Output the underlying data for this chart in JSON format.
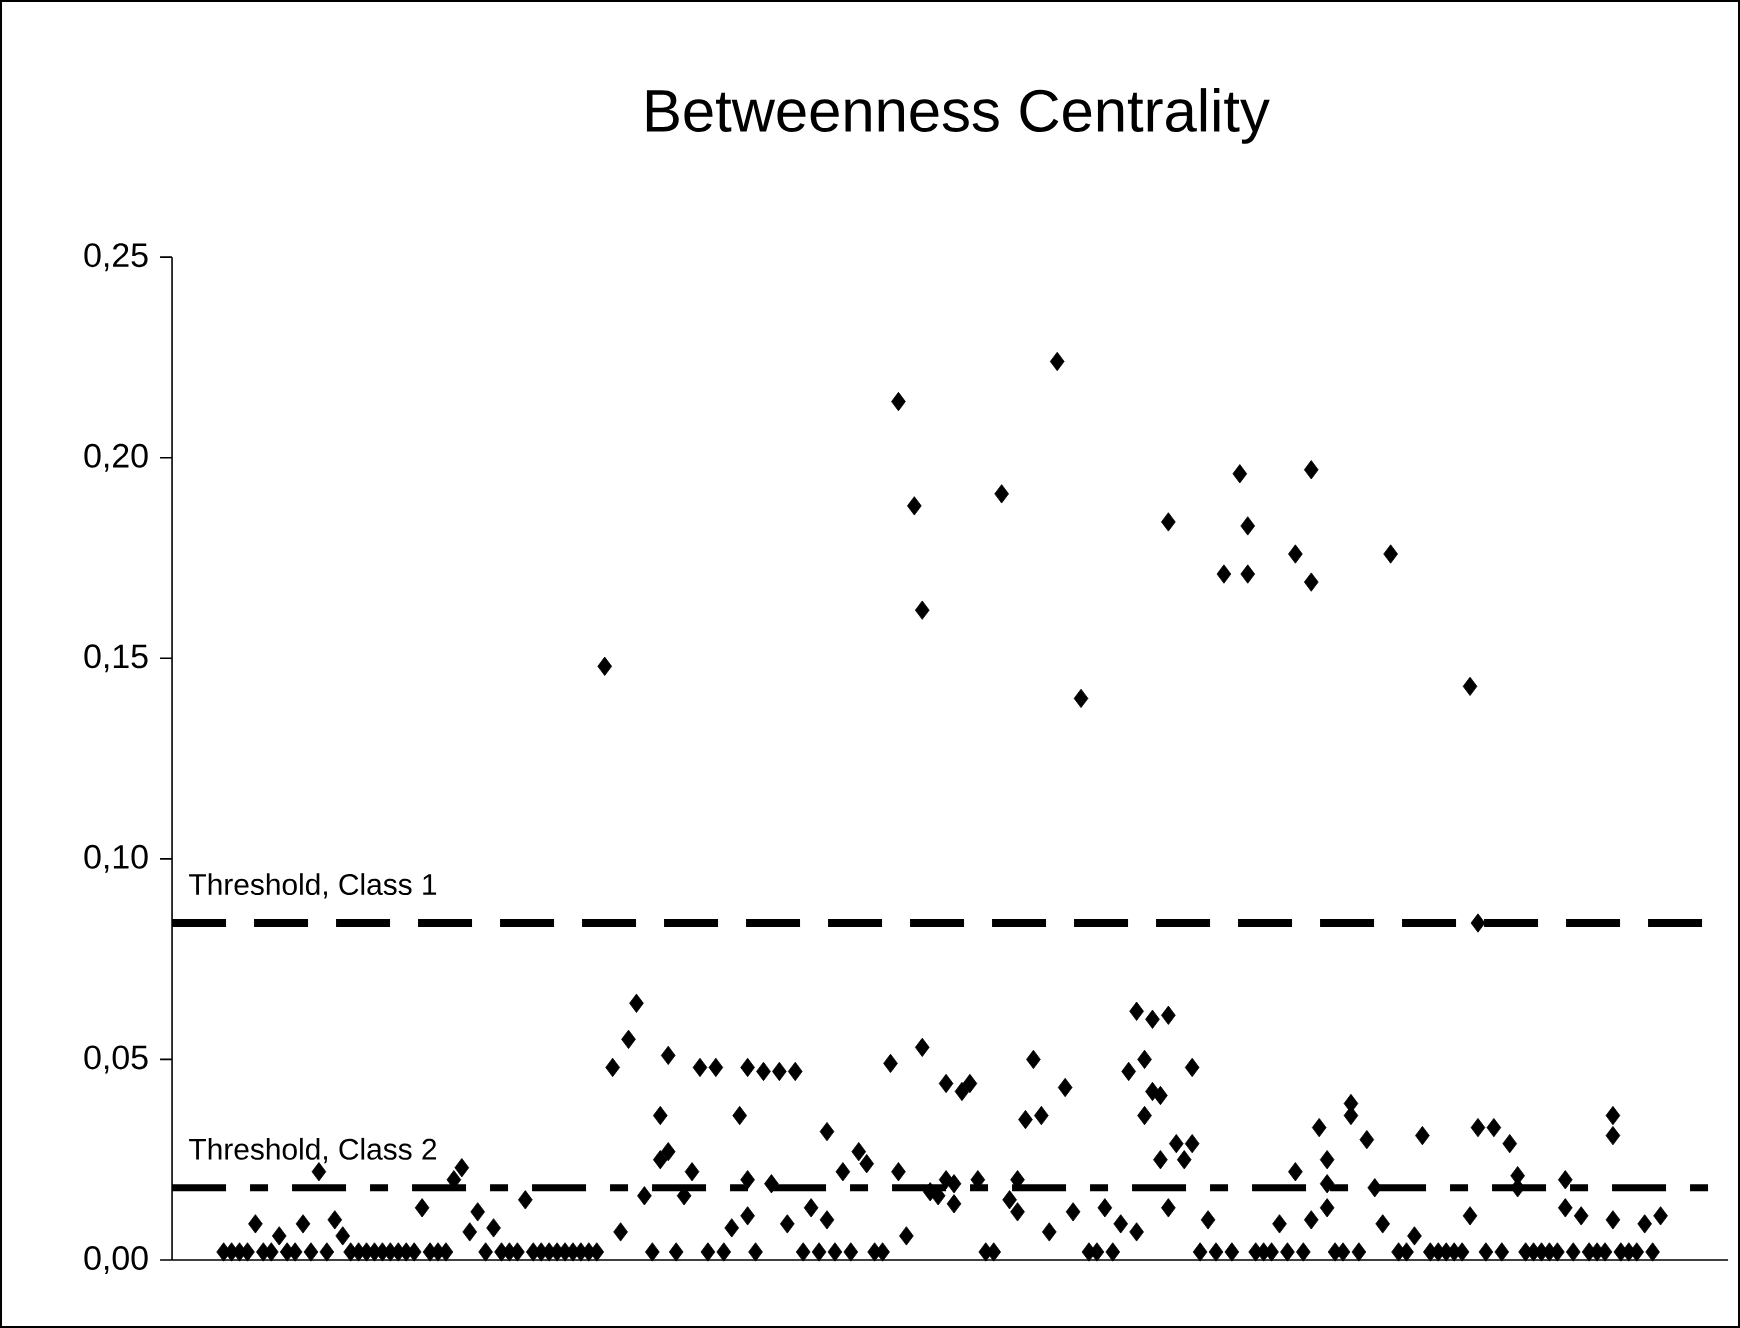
{
  "chart_data": {
    "type": "scatter",
    "title": "Betweenness Centrality",
    "categories": [
      null,
      null,
      null,
      null,
      null,
      null,
      null,
      null,
      null,
      null,
      null,
      null,
      null,
      null,
      null,
      null,
      null,
      null,
      null,
      null,
      null,
      null,
      null,
      null,
      null,
      null,
      null,
      null,
      null,
      null,
      null,
      null,
      null,
      null,
      null,
      null,
      null,
      null,
      null,
      null,
      null,
      null,
      null,
      null,
      null,
      null,
      null,
      null,
      null,
      null,
      null,
      null,
      null,
      null,
      null,
      null,
      null,
      null,
      null,
      null,
      null,
      null,
      null,
      null,
      null,
      null,
      null,
      null,
      null,
      null,
      null,
      null,
      null,
      null,
      null,
      null,
      null,
      null,
      null,
      null,
      null,
      null,
      null,
      null,
      null,
      null,
      null,
      null,
      null,
      null,
      null,
      null,
      null,
      null,
      null,
      null,
      null,
      null,
      null,
      null,
      null,
      null,
      null,
      null,
      null,
      null,
      null,
      null,
      null,
      null,
      null,
      null,
      null,
      null,
      null,
      null,
      null,
      null,
      null,
      null,
      null,
      null,
      null,
      null,
      null,
      null,
      null,
      null,
      null,
      null,
      null,
      null,
      null,
      null,
      null,
      null,
      null,
      null,
      null,
      null,
      null,
      null,
      null,
      null,
      null,
      null,
      null,
      null,
      null,
      null,
      null,
      null,
      null,
      null,
      null,
      null,
      null,
      null,
      null,
      null,
      null,
      null,
      null,
      null,
      null,
      null,
      null,
      null,
      null,
      null,
      null,
      null,
      null,
      null,
      null,
      null,
      null,
      null,
      null,
      null,
      null,
      null,
      null,
      null,
      null,
      null,
      null,
      null,
      null,
      null,
      null,
      null,
      null,
      null,
      null,
      null
    ],
    "series": [
      {
        "color": "#000000",
        "values": [
          null,
          null,
          null,
          null,
          null,
          null,
          0.002,
          0.002,
          0.002,
          0.002,
          0.009,
          0.002,
          0.002,
          0.006,
          0.002,
          0.002,
          0.009,
          0.002,
          0.022,
          0.002,
          0.01,
          0.006,
          0.002,
          0.002,
          0.002,
          0.002,
          0.002,
          0.002,
          0.002,
          0.002,
          0.002,
          0.013,
          0.002,
          0.002,
          0.002,
          0.02,
          0.023,
          0.007,
          0.012,
          0.002,
          0.008,
          0.002,
          0.002,
          0.002,
          0.015,
          0.002,
          0.002,
          0.002,
          0.002,
          0.002,
          0.002,
          0.002,
          0.002,
          0.002,
          0.148,
          0.048,
          0.007,
          0.055,
          0.064,
          0.016,
          0.002,
          0.036,
          0.051,
          0.002,
          0.016,
          0.022,
          0.048,
          0.002,
          0.048,
          0.002,
          0.008,
          0.036,
          0.048,
          0.002,
          0.047,
          0.019,
          0.047,
          0.009,
          0.047,
          0.002,
          0.013,
          0.002,
          0.032,
          0.002,
          0.022,
          0.002,
          0.027,
          0.024,
          0.002,
          0.002,
          0.049,
          0.214,
          0.006,
          0.188,
          0.162,
          0.017,
          0.016,
          0.044,
          0.019,
          0.042,
          0.044,
          0.02,
          0.002,
          0.002,
          0.191,
          0.015,
          0.02,
          0.035,
          0.05,
          0.036,
          0.007,
          0.224,
          0.043,
          0.012,
          0.14,
          0.002,
          0.002,
          0.013,
          0.002,
          0.009,
          0.047,
          0.062,
          0.05,
          0.06,
          0.025,
          0.184,
          0.029,
          0.025,
          0.048,
          0.002,
          0.01,
          0.002,
          0.171,
          0.002,
          0.196,
          0.183,
          0.002,
          0.002,
          0.002,
          0.009,
          0.002,
          0.176,
          0.002,
          0.197,
          0.033,
          0.025,
          0.002,
          0.002,
          0.039,
          0.002,
          0.03,
          0.018,
          0.009,
          0.176,
          0.002,
          0.002,
          0.006,
          0.031,
          0.002,
          0.002,
          0.002,
          0.002,
          0.002,
          0.143,
          0.084,
          0.002,
          0.033,
          0.002,
          0.029,
          0.018,
          0.002,
          0.002,
          0.002,
          0.002,
          0.002,
          0.02,
          0.002,
          0.011,
          0.002,
          0.002,
          0.002,
          0.036,
          0.002,
          0.002,
          0.002,
          0.009,
          0.002,
          0.011,
          null,
          null,
          null,
          null,
          null,
          null,
          null,
          null
        ]
      },
      {
        "color": "#000000",
        "values": [
          null,
          null,
          null,
          null,
          null,
          null,
          null,
          null,
          null,
          null,
          null,
          null,
          null,
          null,
          null,
          null,
          null,
          null,
          null,
          null,
          null,
          null,
          null,
          null,
          null,
          null,
          null,
          null,
          null,
          null,
          null,
          null,
          null,
          null,
          null,
          null,
          null,
          null,
          null,
          null,
          null,
          null,
          null,
          null,
          null,
          null,
          null,
          null,
          null,
          null,
          null,
          null,
          null,
          null,
          null,
          null,
          null,
          null,
          null,
          null,
          null,
          0.025,
          0.027,
          null,
          null,
          null,
          null,
          null,
          null,
          null,
          null,
          null,
          0.02,
          null,
          null,
          null,
          null,
          null,
          null,
          null,
          null,
          null,
          0.01,
          null,
          null,
          null,
          null,
          null,
          null,
          null,
          null,
          0.022,
          null,
          null,
          0.053,
          null,
          null,
          0.02,
          0.014,
          null,
          null,
          null,
          null,
          null,
          null,
          null,
          0.012,
          null,
          null,
          null,
          null,
          null,
          null,
          null,
          null,
          null,
          null,
          null,
          null,
          null,
          null,
          0.007,
          0.036,
          0.042,
          0.041,
          0.061,
          null,
          null,
          0.029,
          null,
          null,
          null,
          null,
          null,
          null,
          0.171,
          null,
          null,
          null,
          null,
          null,
          0.022,
          null,
          0.169,
          null,
          0.013,
          null,
          null,
          0.036,
          null,
          null,
          null,
          null,
          null,
          null,
          null,
          null,
          null,
          null,
          null,
          null,
          null,
          null,
          0.011,
          0.033,
          null,
          null,
          null,
          null,
          0.021,
          null,
          null,
          null,
          null,
          null,
          0.013,
          null,
          null,
          null,
          null,
          null,
          0.031,
          null,
          null,
          null,
          null,
          null,
          null,
          null,
          null,
          null,
          null,
          null,
          null,
          null,
          null
        ]
      },
      {
        "color": "#000000",
        "values": [
          null,
          null,
          null,
          null,
          null,
          null,
          null,
          null,
          null,
          null,
          null,
          null,
          null,
          null,
          null,
          null,
          null,
          null,
          null,
          null,
          null,
          null,
          null,
          null,
          null,
          null,
          null,
          null,
          null,
          null,
          null,
          null,
          null,
          null,
          null,
          null,
          null,
          null,
          null,
          null,
          null,
          null,
          null,
          null,
          null,
          null,
          null,
          null,
          null,
          null,
          null,
          null,
          null,
          null,
          null,
          null,
          null,
          null,
          null,
          null,
          null,
          null,
          null,
          null,
          null,
          null,
          null,
          null,
          null,
          null,
          null,
          null,
          0.011,
          null,
          null,
          null,
          null,
          null,
          null,
          null,
          null,
          null,
          null,
          null,
          null,
          null,
          null,
          null,
          null,
          null,
          null,
          null,
          null,
          null,
          null,
          null,
          null,
          null,
          null,
          null,
          null,
          null,
          null,
          null,
          null,
          null,
          null,
          null,
          null,
          null,
          null,
          null,
          null,
          null,
          null,
          null,
          null,
          null,
          null,
          null,
          null,
          null,
          null,
          null,
          null,
          0.013,
          null,
          null,
          null,
          null,
          null,
          null,
          null,
          null,
          null,
          null,
          null,
          null,
          null,
          null,
          null,
          null,
          null,
          0.01,
          null,
          0.019,
          null,
          null,
          null,
          null,
          null,
          null,
          null,
          null,
          null,
          null,
          null,
          null,
          null,
          null,
          null,
          null,
          null,
          null,
          null,
          null,
          null,
          null,
          null,
          null,
          null,
          null,
          null,
          null,
          null,
          null,
          null,
          null,
          null,
          null,
          null,
          0.01,
          null,
          null,
          null,
          null,
          null,
          null,
          null,
          null,
          null,
          null,
          null,
          null,
          null,
          null
        ]
      }
    ],
    "marker": "diamond",
    "ylim": [
      0,
      0.25
    ],
    "yticks": [
      {
        "value": 0,
        "label": "0,00"
      },
      {
        "value": 0.05,
        "label": "0,05"
      },
      {
        "value": 0.1,
        "label": "0,10"
      },
      {
        "value": 0.15,
        "label": "0,15"
      },
      {
        "value": 0.2,
        "label": "0,20"
      },
      {
        "value": 0.25,
        "label": "0,25"
      }
    ],
    "tick_labels": "y",
    "ref_lines": [
      {
        "axis": "y",
        "value": 0.084,
        "label": "Threshold, Class 1",
        "line_style": "dashed"
      },
      {
        "axis": "y",
        "value": 0.018,
        "label": "Threshold, Class 2",
        "line_style": "dashdot"
      }
    ]
  }
}
